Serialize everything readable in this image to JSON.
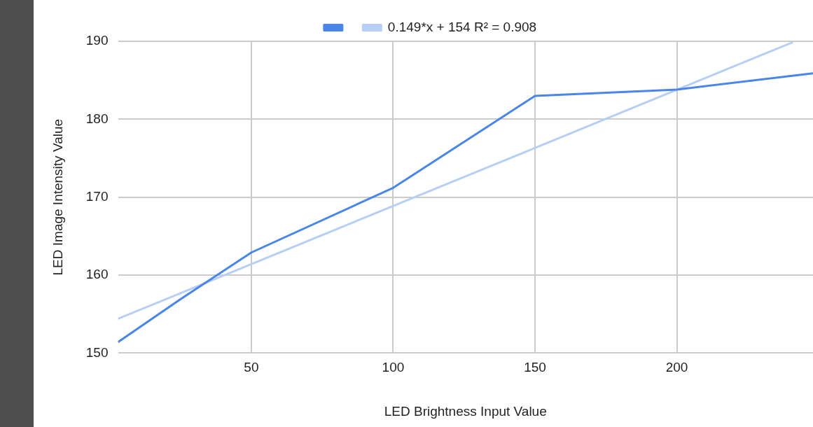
{
  "chart_data": {
    "type": "line",
    "xlabel": "LED Brightness Input Value",
    "ylabel": "LED Image Intensity Value",
    "series": [
      {
        "color": "#4a86e8",
        "x": [
          3,
          25,
          50,
          100,
          150,
          200,
          248
        ],
        "values": [
          151.4,
          156.9,
          162.9,
          171.2,
          183.0,
          183.8,
          185.9
        ]
      },
      {
        "name": "0.149*x + 154 R² = 0.908",
        "color": "#b7cff5",
        "x": [
          3,
          241
        ],
        "values": [
          154.4,
          189.9
        ]
      }
    ],
    "xlim": [
      3,
      248
    ],
    "xticks": [
      50,
      100,
      150,
      200
    ],
    "ylim": [
      150,
      190
    ],
    "yticks": [
      150,
      160,
      170,
      180,
      190
    ],
    "grid": true,
    "legend": "top",
    "marker": "none",
    "line_style": "solid"
  }
}
